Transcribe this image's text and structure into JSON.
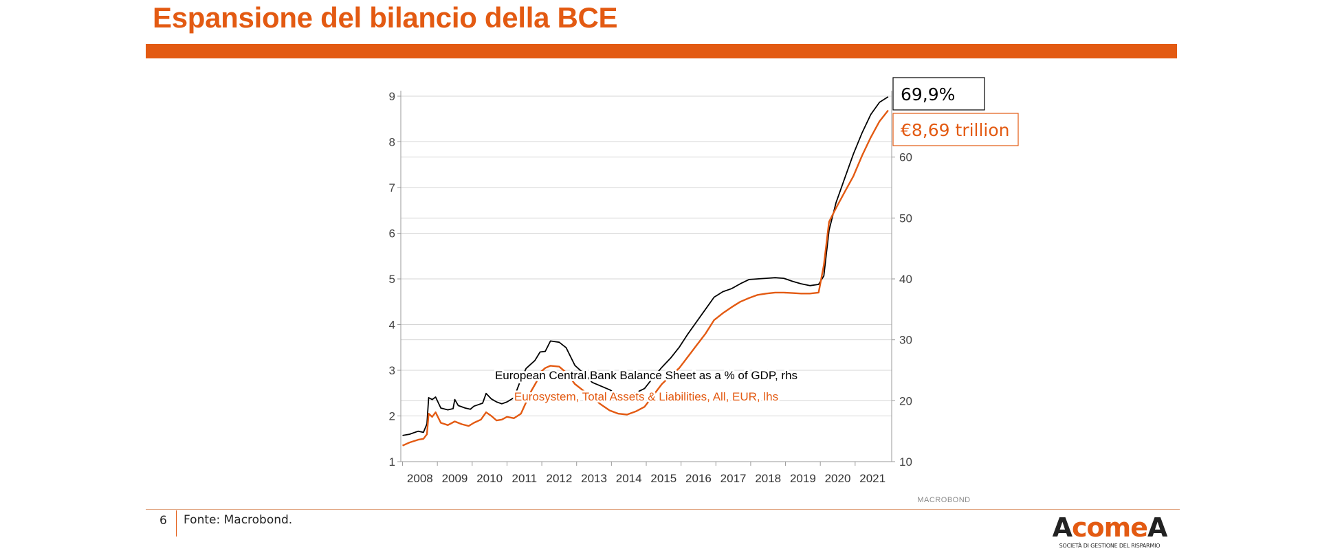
{
  "slide": {
    "title": "Espansione del bilancio della BCE",
    "page_number": "6",
    "source": "Fonte: Macrobond."
  },
  "brand": {
    "accent_color": "#E35A12",
    "logo_parts": [
      "A",
      "come",
      "A"
    ],
    "logo_subtitle": "SOCIETÀ DI GESTIONE DEL RISPARMIO",
    "watermark": "MACROBOND"
  },
  "chart_data": {
    "type": "line",
    "title": "",
    "x_ticks": [
      "2008",
      "2009",
      "2010",
      "2011",
      "2012",
      "2013",
      "2014",
      "2015",
      "2016",
      "2017",
      "2018",
      "2019",
      "2020",
      "2021"
    ],
    "x_range": [
      2007.95,
      2022.05
    ],
    "y_left": {
      "range": [
        1,
        9
      ],
      "ticks": [
        "1",
        "2",
        "3",
        "4",
        "5",
        "6",
        "7",
        "8",
        "9"
      ]
    },
    "y_right": {
      "range": [
        10,
        70
      ],
      "ticks": [
        "10",
        "20",
        "30",
        "40",
        "50",
        "60"
      ]
    },
    "grid": "horizontal",
    "series": [
      {
        "name": "European Central Bank Balance Sheet as a % of GDP, rhs",
        "axis": "right",
        "color": "#000000",
        "points": [
          [
            2008.0,
            14.3
          ],
          [
            2008.2,
            14.5
          ],
          [
            2008.45,
            15.0
          ],
          [
            2008.6,
            14.8
          ],
          [
            2008.7,
            16.2
          ],
          [
            2008.75,
            20.5
          ],
          [
            2008.85,
            20.2
          ],
          [
            2008.95,
            20.6
          ],
          [
            2009.1,
            18.8
          ],
          [
            2009.3,
            18.5
          ],
          [
            2009.45,
            18.7
          ],
          [
            2009.5,
            20.2
          ],
          [
            2009.6,
            19.2
          ],
          [
            2009.8,
            18.8
          ],
          [
            2009.95,
            18.6
          ],
          [
            2010.05,
            19.1
          ],
          [
            2010.2,
            19.4
          ],
          [
            2010.3,
            19.6
          ],
          [
            2010.4,
            21.2
          ],
          [
            2010.55,
            20.3
          ],
          [
            2010.7,
            19.8
          ],
          [
            2010.85,
            19.5
          ],
          [
            2011.0,
            19.8
          ],
          [
            2011.2,
            20.5
          ],
          [
            2011.4,
            23.5
          ],
          [
            2011.55,
            25.3
          ],
          [
            2011.8,
            26.6
          ],
          [
            2011.95,
            28.0
          ],
          [
            2012.1,
            28.1
          ],
          [
            2012.25,
            29.8
          ],
          [
            2012.5,
            29.6
          ],
          [
            2012.7,
            28.7
          ],
          [
            2012.95,
            25.8
          ],
          [
            2013.2,
            24.5
          ],
          [
            2013.45,
            23.0
          ],
          [
            2013.7,
            22.4
          ],
          [
            2013.95,
            21.8
          ],
          [
            2014.2,
            21.0
          ],
          [
            2014.45,
            21.0
          ],
          [
            2014.7,
            21.3
          ],
          [
            2014.95,
            22.0
          ],
          [
            2015.2,
            23.8
          ],
          [
            2015.45,
            25.5
          ],
          [
            2015.7,
            27.0
          ],
          [
            2015.95,
            28.8
          ],
          [
            2016.2,
            31.0
          ],
          [
            2016.45,
            33.0
          ],
          [
            2016.7,
            35.0
          ],
          [
            2016.95,
            37.0
          ],
          [
            2017.2,
            37.9
          ],
          [
            2017.45,
            38.4
          ],
          [
            2017.7,
            39.2
          ],
          [
            2017.95,
            39.9
          ],
          [
            2018.2,
            40.0
          ],
          [
            2018.45,
            40.1
          ],
          [
            2018.7,
            40.2
          ],
          [
            2018.95,
            40.1
          ],
          [
            2019.2,
            39.6
          ],
          [
            2019.45,
            39.2
          ],
          [
            2019.7,
            38.9
          ],
          [
            2019.95,
            39.1
          ],
          [
            2020.1,
            40.5
          ],
          [
            2020.25,
            48.0
          ],
          [
            2020.45,
            52.5
          ],
          [
            2020.7,
            56.5
          ],
          [
            2020.95,
            60.5
          ],
          [
            2021.2,
            64.0
          ],
          [
            2021.45,
            67.0
          ],
          [
            2021.7,
            69.0
          ],
          [
            2021.95,
            69.9
          ]
        ]
      },
      {
        "name": "Eurosystem, Total Assets & Liabilities, All, EUR, lhs",
        "axis": "left",
        "color": "#E35A12",
        "points": [
          [
            2008.0,
            1.35
          ],
          [
            2008.2,
            1.42
          ],
          [
            2008.45,
            1.48
          ],
          [
            2008.6,
            1.5
          ],
          [
            2008.7,
            1.6
          ],
          [
            2008.75,
            2.05
          ],
          [
            2008.85,
            1.98
          ],
          [
            2008.95,
            2.08
          ],
          [
            2009.1,
            1.85
          ],
          [
            2009.3,
            1.8
          ],
          [
            2009.5,
            1.88
          ],
          [
            2009.7,
            1.82
          ],
          [
            2009.9,
            1.78
          ],
          [
            2010.05,
            1.85
          ],
          [
            2010.25,
            1.92
          ],
          [
            2010.4,
            2.08
          ],
          [
            2010.55,
            2.0
          ],
          [
            2010.7,
            1.9
          ],
          [
            2010.85,
            1.92
          ],
          [
            2011.0,
            1.98
          ],
          [
            2011.2,
            1.95
          ],
          [
            2011.4,
            2.05
          ],
          [
            2011.55,
            2.3
          ],
          [
            2011.7,
            2.55
          ],
          [
            2011.85,
            2.75
          ],
          [
            2011.95,
            2.95
          ],
          [
            2012.1,
            3.05
          ],
          [
            2012.25,
            3.1
          ],
          [
            2012.5,
            3.08
          ],
          [
            2012.7,
            2.95
          ],
          [
            2012.95,
            2.7
          ],
          [
            2013.2,
            2.55
          ],
          [
            2013.45,
            2.4
          ],
          [
            2013.7,
            2.25
          ],
          [
            2013.95,
            2.12
          ],
          [
            2014.2,
            2.05
          ],
          [
            2014.45,
            2.03
          ],
          [
            2014.7,
            2.1
          ],
          [
            2014.95,
            2.2
          ],
          [
            2015.2,
            2.45
          ],
          [
            2015.45,
            2.7
          ],
          [
            2015.7,
            2.88
          ],
          [
            2015.95,
            3.05
          ],
          [
            2016.2,
            3.3
          ],
          [
            2016.45,
            3.55
          ],
          [
            2016.7,
            3.8
          ],
          [
            2016.95,
            4.1
          ],
          [
            2017.2,
            4.25
          ],
          [
            2017.45,
            4.38
          ],
          [
            2017.7,
            4.5
          ],
          [
            2017.95,
            4.58
          ],
          [
            2018.2,
            4.65
          ],
          [
            2018.45,
            4.68
          ],
          [
            2018.7,
            4.7
          ],
          [
            2018.95,
            4.7
          ],
          [
            2019.2,
            4.69
          ],
          [
            2019.45,
            4.68
          ],
          [
            2019.7,
            4.68
          ],
          [
            2019.95,
            4.7
          ],
          [
            2020.1,
            5.3
          ],
          [
            2020.25,
            6.25
          ],
          [
            2020.45,
            6.55
          ],
          [
            2020.7,
            6.9
          ],
          [
            2020.95,
            7.25
          ],
          [
            2021.2,
            7.7
          ],
          [
            2021.45,
            8.1
          ],
          [
            2021.7,
            8.45
          ],
          [
            2021.95,
            8.69
          ]
        ]
      }
    ],
    "callouts": [
      {
        "text": "69,9%",
        "series": 0,
        "color": "#000000"
      },
      {
        "text": "€8,69 trillion",
        "series": 1,
        "color": "#E35A12"
      }
    ]
  }
}
